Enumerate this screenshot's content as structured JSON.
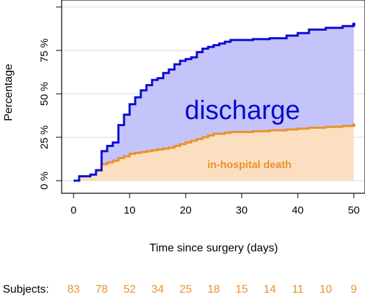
{
  "chart_data": {
    "type": "area",
    "xlabel": "Time since surgery (days)",
    "ylabel": "Percentage",
    "xlim": [
      0,
      50
    ],
    "ylim": [
      0,
      100
    ],
    "x_ticks": [
      0,
      10,
      20,
      30,
      40,
      50
    ],
    "y_ticks": [
      0,
      25,
      50,
      75
    ],
    "y_tick_labels": [
      "0 %",
      "25 %",
      "50 %",
      "75 %"
    ],
    "grid": true,
    "colors": {
      "discharge_line": "#0a0ad2",
      "discharge_fill": "#c4c4fa",
      "death_line": "#e8922e",
      "death_fill": "#fbdfc0",
      "grid": "#d9d9d9",
      "axis": "#000000"
    },
    "series": [
      {
        "name": "discharge",
        "label_style": "blue-large",
        "x": [
          0,
          1,
          3,
          4,
          5,
          6,
          7,
          8,
          9,
          10,
          11,
          12,
          13,
          14,
          15,
          16,
          17,
          18,
          19,
          20,
          21,
          22,
          23,
          24,
          25,
          26,
          27,
          28,
          30,
          32,
          35,
          38,
          40,
          42,
          45,
          48,
          50
        ],
        "y": [
          0,
          2.5,
          3.5,
          6,
          17,
          20,
          22,
          32,
          38,
          44,
          48,
          52,
          55,
          58,
          59,
          62,
          64,
          67,
          69,
          70,
          71,
          74,
          76,
          77,
          78,
          79,
          80,
          81,
          81,
          81.5,
          82,
          83.5,
          85,
          87,
          88,
          89,
          90
        ]
      },
      {
        "name": "in-hospital death",
        "label_style": "orange-bold",
        "x": [
          0,
          1,
          3,
          4,
          5,
          6,
          7,
          8,
          9,
          10,
          11,
          12,
          13,
          14,
          15,
          16,
          17,
          18,
          19,
          20,
          21,
          22,
          23,
          24,
          25,
          27,
          28,
          30,
          32,
          35,
          38,
          40,
          42,
          45,
          48,
          50
        ],
        "y": [
          0,
          2.5,
          3.5,
          6,
          9.5,
          10.5,
          11.5,
          13,
          14,
          15.5,
          16,
          16.5,
          17,
          17.5,
          18,
          18.5,
          19,
          20,
          21,
          22,
          23,
          24,
          25,
          26,
          27,
          27.5,
          28,
          28,
          28.5,
          29,
          29.5,
          30,
          30.5,
          31,
          31.5,
          32
        ]
      }
    ],
    "subjects": {
      "label": "Subjects:",
      "counts": [
        "83",
        "78",
        "52",
        "34",
        "25",
        "18",
        "15",
        "14",
        "11",
        "10",
        "9"
      ]
    }
  }
}
